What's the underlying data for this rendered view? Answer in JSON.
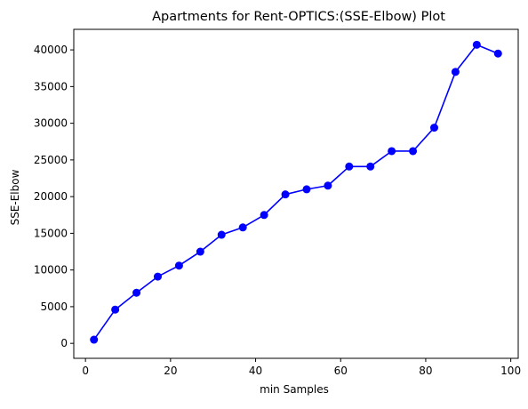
{
  "chart_data": {
    "type": "line",
    "title": "Apartments for Rent-OPTICS:(SSE-Elbow) Plot",
    "xlabel": "min Samples",
    "ylabel": "SSE-Elbow",
    "xlim": [
      -2.75,
      101.75
    ],
    "ylim": [
      -2040,
      42800
    ],
    "xticks": [
      0,
      20,
      40,
      60,
      80,
      100
    ],
    "yticks": [
      0,
      5000,
      10000,
      15000,
      20000,
      25000,
      30000,
      35000,
      40000
    ],
    "grid": false,
    "legend": "none",
    "series": [
      {
        "color": "#0000ff",
        "marker": "circle",
        "x": [
          2,
          7,
          12,
          17,
          22,
          27,
          32,
          37,
          42,
          47,
          52,
          57,
          62,
          67,
          72,
          77,
          82,
          87,
          92,
          97
        ],
        "y": [
          500,
          4600,
          6900,
          9100,
          10600,
          12500,
          14800,
          15800,
          17500,
          20300,
          21000,
          21500,
          24100,
          24100,
          26200,
          26200,
          29400,
          37000,
          40700,
          39500
        ]
      }
    ]
  }
}
